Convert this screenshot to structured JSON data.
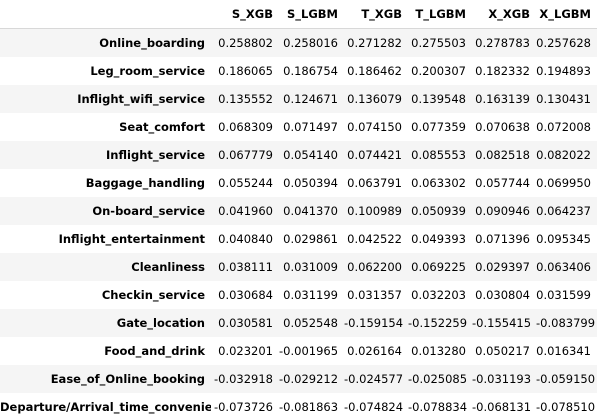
{
  "table": {
    "index_header": "",
    "columns": [
      "S_XGB",
      "S_LGBM",
      "T_XGB",
      "T_LGBM",
      "X_XGB",
      "X_LGBM"
    ],
    "rows": [
      {
        "label": "Online_boarding",
        "values": [
          "0.258802",
          "0.258016",
          "0.271282",
          "0.275503",
          "0.278783",
          "0.257628"
        ]
      },
      {
        "label": "Leg_room_service",
        "values": [
          "0.186065",
          "0.186754",
          "0.186462",
          "0.200307",
          "0.182332",
          "0.194893"
        ]
      },
      {
        "label": "Inflight_wifi_service",
        "values": [
          "0.135552",
          "0.124671",
          "0.136079",
          "0.139548",
          "0.163139",
          "0.130431"
        ]
      },
      {
        "label": "Seat_comfort",
        "values": [
          "0.068309",
          "0.071497",
          "0.074150",
          "0.077359",
          "0.070638",
          "0.072008"
        ]
      },
      {
        "label": "Inflight_service",
        "values": [
          "0.067779",
          "0.054140",
          "0.074421",
          "0.085553",
          "0.082518",
          "0.082022"
        ]
      },
      {
        "label": "Baggage_handling",
        "values": [
          "0.055244",
          "0.050394",
          "0.063791",
          "0.063302",
          "0.057744",
          "0.069950"
        ]
      },
      {
        "label": "On-board_service",
        "values": [
          "0.041960",
          "0.041370",
          "0.100989",
          "0.050939",
          "0.090946",
          "0.064237"
        ]
      },
      {
        "label": "Inflight_entertainment",
        "values": [
          "0.040840",
          "0.029861",
          "0.042522",
          "0.049393",
          "0.071396",
          "0.095345"
        ]
      },
      {
        "label": "Cleanliness",
        "values": [
          "0.038111",
          "0.031009",
          "0.062200",
          "0.069225",
          "0.029397",
          "0.063406"
        ]
      },
      {
        "label": "Checkin_service",
        "values": [
          "0.030684",
          "0.031199",
          "0.031357",
          "0.032203",
          "0.030804",
          "0.031599"
        ]
      },
      {
        "label": "Gate_location",
        "values": [
          "0.030581",
          "0.052548",
          "-0.159154",
          "-0.152259",
          "-0.155415",
          "-0.083799"
        ]
      },
      {
        "label": "Food_and_drink",
        "values": [
          "0.023201",
          "-0.001965",
          "0.026164",
          "0.013280",
          "0.050217",
          "0.016341"
        ]
      },
      {
        "label": "Ease_of_Online_booking",
        "values": [
          "-0.032918",
          "-0.029212",
          "-0.024577",
          "-0.025085",
          "-0.031193",
          "-0.059150"
        ]
      },
      {
        "label": "Departure/Arrival_time_convenient",
        "values": [
          "-0.073726",
          "-0.081863",
          "-0.074824",
          "-0.078834",
          "-0.068131",
          "-0.078510"
        ]
      }
    ]
  },
  "colors": {
    "stripe": "#f5f5f5",
    "background": "#ffffff",
    "header_rule": "#d8d8d8",
    "text": "#000000"
  }
}
